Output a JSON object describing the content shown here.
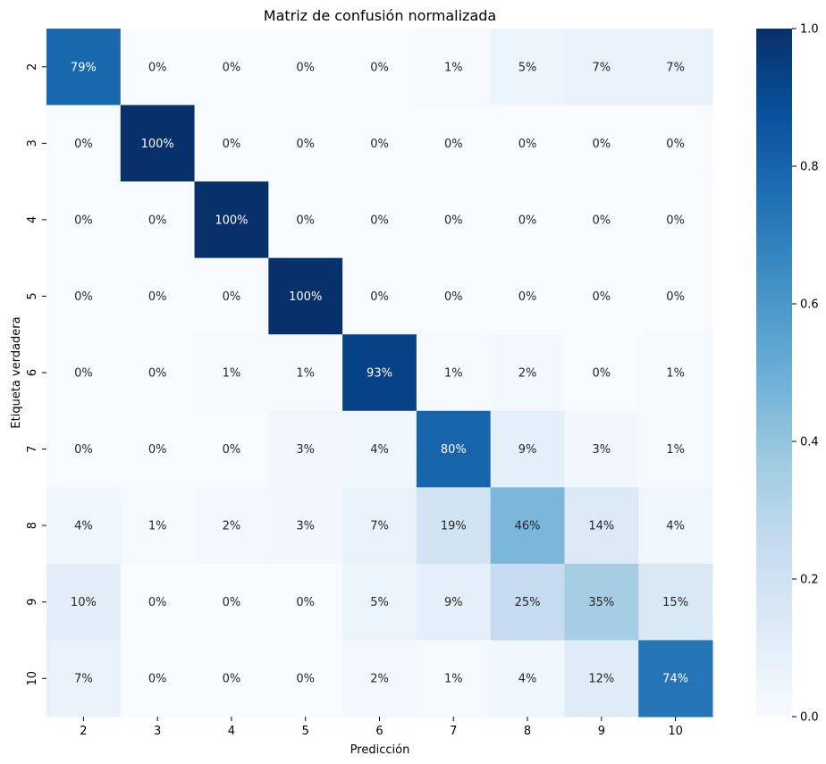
{
  "chart_data": {
    "type": "heatmap",
    "title": "Matriz de confusión normalizada",
    "xlabel": "Predicción",
    "ylabel": "Etiqueta verdadera",
    "x_categories": [
      "2",
      "3",
      "4",
      "5",
      "6",
      "7",
      "8",
      "9",
      "10"
    ],
    "y_categories": [
      "2",
      "3",
      "4",
      "5",
      "6",
      "7",
      "8",
      "9",
      "10"
    ],
    "values": [
      [
        0.79,
        0.0,
        0.0,
        0.0,
        0.0,
        0.01,
        0.05,
        0.07,
        0.07
      ],
      [
        0.0,
        1.0,
        0.0,
        0.0,
        0.0,
        0.0,
        0.0,
        0.0,
        0.0
      ],
      [
        0.0,
        0.0,
        1.0,
        0.0,
        0.0,
        0.0,
        0.0,
        0.0,
        0.0
      ],
      [
        0.0,
        0.0,
        0.0,
        1.0,
        0.0,
        0.0,
        0.0,
        0.0,
        0.0
      ],
      [
        0.0,
        0.0,
        0.01,
        0.01,
        0.93,
        0.01,
        0.02,
        0.0,
        0.01
      ],
      [
        0.0,
        0.0,
        0.0,
        0.03,
        0.04,
        0.8,
        0.09,
        0.03,
        0.01
      ],
      [
        0.04,
        0.01,
        0.02,
        0.03,
        0.07,
        0.19,
        0.46,
        0.14,
        0.04
      ],
      [
        0.1,
        0.0,
        0.0,
        0.0,
        0.05,
        0.09,
        0.25,
        0.35,
        0.15
      ],
      [
        0.07,
        0.0,
        0.0,
        0.0,
        0.02,
        0.01,
        0.04,
        0.12,
        0.74
      ]
    ],
    "cell_labels": [
      [
        "79%",
        "0%",
        "0%",
        "0%",
        "0%",
        "1%",
        "5%",
        "7%",
        "7%"
      ],
      [
        "0%",
        "100%",
        "0%",
        "0%",
        "0%",
        "0%",
        "0%",
        "0%",
        "0%"
      ],
      [
        "0%",
        "0%",
        "100%",
        "0%",
        "0%",
        "0%",
        "0%",
        "0%",
        "0%"
      ],
      [
        "0%",
        "0%",
        "0%",
        "100%",
        "0%",
        "0%",
        "0%",
        "0%",
        "0%"
      ],
      [
        "0%",
        "0%",
        "1%",
        "1%",
        "93%",
        "1%",
        "2%",
        "0%",
        "1%"
      ],
      [
        "0%",
        "0%",
        "0%",
        "3%",
        "4%",
        "80%",
        "9%",
        "3%",
        "1%"
      ],
      [
        "4%",
        "1%",
        "2%",
        "3%",
        "7%",
        "19%",
        "46%",
        "14%",
        "4%"
      ],
      [
        "10%",
        "0%",
        "0%",
        "0%",
        "5%",
        "9%",
        "25%",
        "35%",
        "15%"
      ],
      [
        "7%",
        "0%",
        "0%",
        "0%",
        "2%",
        "1%",
        "4%",
        "12%",
        "74%"
      ]
    ],
    "colorscale": "Blues",
    "colorbar_range": [
      0,
      1
    ],
    "colorbar_ticks": [
      "0.0",
      "0.2",
      "0.4",
      "0.6",
      "0.8",
      "1.0"
    ],
    "colorbar_tick_values": [
      0.0,
      0.2,
      0.4,
      0.6,
      0.8,
      1.0
    ],
    "grid": false,
    "colors": {
      "low": "#f7fbff",
      "high": "#08306b",
      "text_dark": "#262626",
      "text_light": "#ffffff"
    }
  }
}
